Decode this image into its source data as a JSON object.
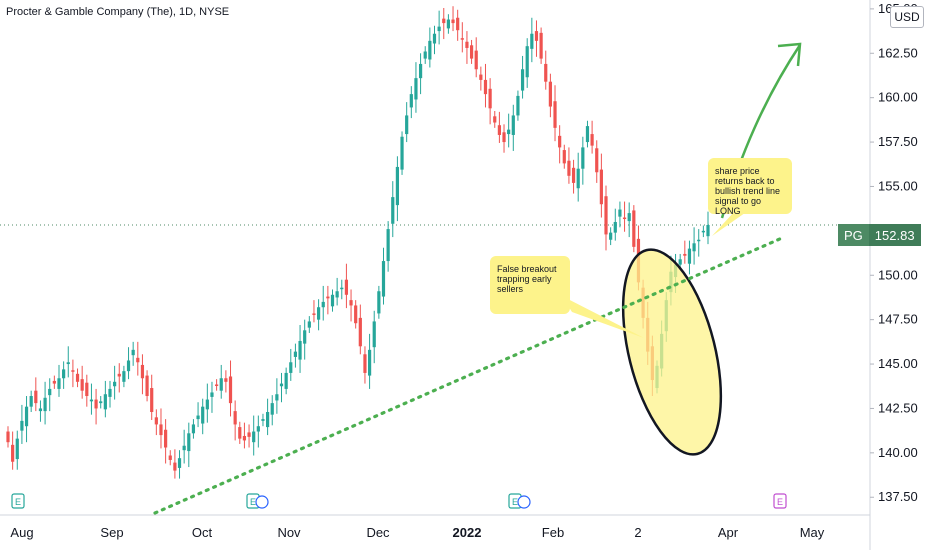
{
  "title": "Procter & Gamble Company (The), 1D, NYSE",
  "currency": "USD",
  "ticker": {
    "symbol": "PG",
    "price": "152.83"
  },
  "annotations": {
    "false_breakout": "False breakout trapping early sellers",
    "share_price": "share price returns back to bullish trend line signal to go LONG"
  },
  "earnings_marker": "E",
  "colors": {
    "up": "#26a69a",
    "down": "#ef5350",
    "trend": "#4caf50",
    "arrow": "#4caf50",
    "highlight": "#fdf38b"
  },
  "chart_data": {
    "type": "candlestick",
    "x_labels": [
      "Aug",
      "Sep",
      "Oct",
      "Nov",
      "Dec",
      "2022",
      "Feb",
      "2",
      "Apr",
      "May"
    ],
    "y_ticks": [
      "165.00",
      "162.50",
      "160.00",
      "157.50",
      "155.00",
      "152.50",
      "150.00",
      "147.50",
      "145.00",
      "142.50",
      "140.00",
      "137.50"
    ],
    "ylim": [
      136.5,
      165.5
    ],
    "current_price": 152.83,
    "closes": [
      140.6,
      139.5,
      140.8,
      141.8,
      142.6,
      143.2,
      142.8,
      142.5,
      143.1,
      143.6,
      143.9,
      144.2,
      144.7,
      145.1,
      144.6,
      144.0,
      143.5,
      143.2,
      143.0,
      142.5,
      142.9,
      143.3,
      143.6,
      144.0,
      144.3,
      144.6,
      145.2,
      145.8,
      145.1,
      144.2,
      143.2,
      142.3,
      141.6,
      141.0,
      140.3,
      139.6,
      139.0,
      139.7,
      140.4,
      141.1,
      141.6,
      142.1,
      142.6,
      143.0,
      143.4,
      143.8,
      144.2,
      144.0,
      142.8,
      141.6,
      140.8,
      140.7,
      140.9,
      141.2,
      141.5,
      141.9,
      142.3,
      142.8,
      143.3,
      143.9,
      144.5,
      145.1,
      145.7,
      146.3,
      146.9,
      147.4,
      147.8,
      148.2,
      148.5,
      148.7,
      148.9,
      149.1,
      149.3,
      148.9,
      148.3,
      147.3,
      146.0,
      144.5,
      145.8,
      147.4,
      149.1,
      150.8,
      152.6,
      154.4,
      156.1,
      157.8,
      159.0,
      160.2,
      161.1,
      161.9,
      162.6,
      163.2,
      163.6,
      164.0,
      164.2,
      164.4,
      164.2,
      163.8,
      163.3,
      162.8,
      162.2,
      161.6,
      161.0,
      160.2,
      159.4,
      158.6,
      157.9,
      157.5,
      158.2,
      159.0,
      160.1,
      161.6,
      162.9,
      163.6,
      163.2,
      162.2,
      160.9,
      159.5,
      158.3,
      157.2,
      156.3,
      155.6,
      155.2,
      156.0,
      157.2,
      158.4,
      157.3,
      155.8,
      154.0,
      152.3,
      152.4,
      153.0,
      153.7,
      153.2,
      153.5,
      151.6,
      149.6,
      147.6,
      145.7,
      144.1,
      144.9,
      146.7,
      148.6,
      150.2,
      150.6,
      150.9,
      151.1,
      151.5,
      151.8,
      152.0,
      152.5,
      152.83
    ]
  }
}
